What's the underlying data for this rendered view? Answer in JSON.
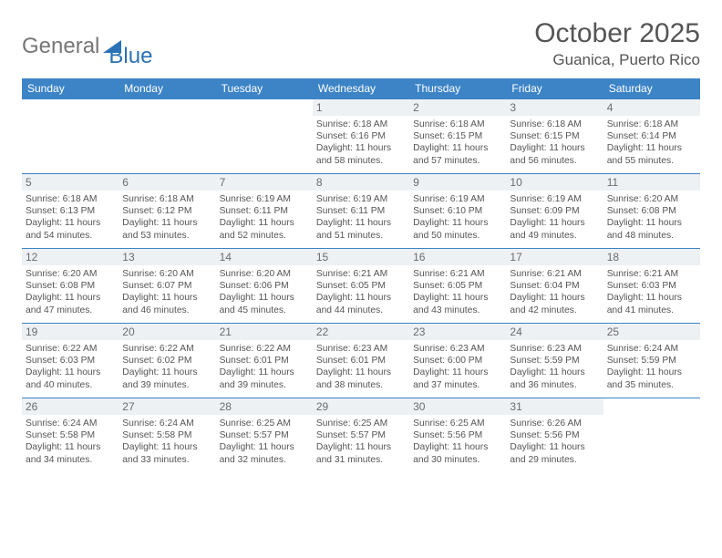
{
  "brand": {
    "word1": "General",
    "word2": "Blue"
  },
  "title": "October 2025",
  "location": "Guanica, Puerto Rico",
  "columns": [
    "Sunday",
    "Monday",
    "Tuesday",
    "Wednesday",
    "Thursday",
    "Friday",
    "Saturday"
  ],
  "colors": {
    "header_bg": "#3c84c6",
    "header_text": "#ffffff",
    "row_border": "#3c84c6",
    "daynum_bg": "#eef1f4",
    "text": "#555555",
    "brand_blue": "#2a72b5",
    "brand_gray": "#777777"
  },
  "weeks": [
    [
      null,
      null,
      null,
      {
        "n": "1",
        "sr": "6:18 AM",
        "ss": "6:16 PM",
        "dl": "11 hours and 58 minutes."
      },
      {
        "n": "2",
        "sr": "6:18 AM",
        "ss": "6:15 PM",
        "dl": "11 hours and 57 minutes."
      },
      {
        "n": "3",
        "sr": "6:18 AM",
        "ss": "6:15 PM",
        "dl": "11 hours and 56 minutes."
      },
      {
        "n": "4",
        "sr": "6:18 AM",
        "ss": "6:14 PM",
        "dl": "11 hours and 55 minutes."
      }
    ],
    [
      {
        "n": "5",
        "sr": "6:18 AM",
        "ss": "6:13 PM",
        "dl": "11 hours and 54 minutes."
      },
      {
        "n": "6",
        "sr": "6:18 AM",
        "ss": "6:12 PM",
        "dl": "11 hours and 53 minutes."
      },
      {
        "n": "7",
        "sr": "6:19 AM",
        "ss": "6:11 PM",
        "dl": "11 hours and 52 minutes."
      },
      {
        "n": "8",
        "sr": "6:19 AM",
        "ss": "6:11 PM",
        "dl": "11 hours and 51 minutes."
      },
      {
        "n": "9",
        "sr": "6:19 AM",
        "ss": "6:10 PM",
        "dl": "11 hours and 50 minutes."
      },
      {
        "n": "10",
        "sr": "6:19 AM",
        "ss": "6:09 PM",
        "dl": "11 hours and 49 minutes."
      },
      {
        "n": "11",
        "sr": "6:20 AM",
        "ss": "6:08 PM",
        "dl": "11 hours and 48 minutes."
      }
    ],
    [
      {
        "n": "12",
        "sr": "6:20 AM",
        "ss": "6:08 PM",
        "dl": "11 hours and 47 minutes."
      },
      {
        "n": "13",
        "sr": "6:20 AM",
        "ss": "6:07 PM",
        "dl": "11 hours and 46 minutes."
      },
      {
        "n": "14",
        "sr": "6:20 AM",
        "ss": "6:06 PM",
        "dl": "11 hours and 45 minutes."
      },
      {
        "n": "15",
        "sr": "6:21 AM",
        "ss": "6:05 PM",
        "dl": "11 hours and 44 minutes."
      },
      {
        "n": "16",
        "sr": "6:21 AM",
        "ss": "6:05 PM",
        "dl": "11 hours and 43 minutes."
      },
      {
        "n": "17",
        "sr": "6:21 AM",
        "ss": "6:04 PM",
        "dl": "11 hours and 42 minutes."
      },
      {
        "n": "18",
        "sr": "6:21 AM",
        "ss": "6:03 PM",
        "dl": "11 hours and 41 minutes."
      }
    ],
    [
      {
        "n": "19",
        "sr": "6:22 AM",
        "ss": "6:03 PM",
        "dl": "11 hours and 40 minutes."
      },
      {
        "n": "20",
        "sr": "6:22 AM",
        "ss": "6:02 PM",
        "dl": "11 hours and 39 minutes."
      },
      {
        "n": "21",
        "sr": "6:22 AM",
        "ss": "6:01 PM",
        "dl": "11 hours and 39 minutes."
      },
      {
        "n": "22",
        "sr": "6:23 AM",
        "ss": "6:01 PM",
        "dl": "11 hours and 38 minutes."
      },
      {
        "n": "23",
        "sr": "6:23 AM",
        "ss": "6:00 PM",
        "dl": "11 hours and 37 minutes."
      },
      {
        "n": "24",
        "sr": "6:23 AM",
        "ss": "5:59 PM",
        "dl": "11 hours and 36 minutes."
      },
      {
        "n": "25",
        "sr": "6:24 AM",
        "ss": "5:59 PM",
        "dl": "11 hours and 35 minutes."
      }
    ],
    [
      {
        "n": "26",
        "sr": "6:24 AM",
        "ss": "5:58 PM",
        "dl": "11 hours and 34 minutes."
      },
      {
        "n": "27",
        "sr": "6:24 AM",
        "ss": "5:58 PM",
        "dl": "11 hours and 33 minutes."
      },
      {
        "n": "28",
        "sr": "6:25 AM",
        "ss": "5:57 PM",
        "dl": "11 hours and 32 minutes."
      },
      {
        "n": "29",
        "sr": "6:25 AM",
        "ss": "5:57 PM",
        "dl": "11 hours and 31 minutes."
      },
      {
        "n": "30",
        "sr": "6:25 AM",
        "ss": "5:56 PM",
        "dl": "11 hours and 30 minutes."
      },
      {
        "n": "31",
        "sr": "6:26 AM",
        "ss": "5:56 PM",
        "dl": "11 hours and 29 minutes."
      },
      null
    ]
  ],
  "labels": {
    "sunrise": "Sunrise:",
    "sunset": "Sunset:",
    "daylight": "Daylight:"
  }
}
